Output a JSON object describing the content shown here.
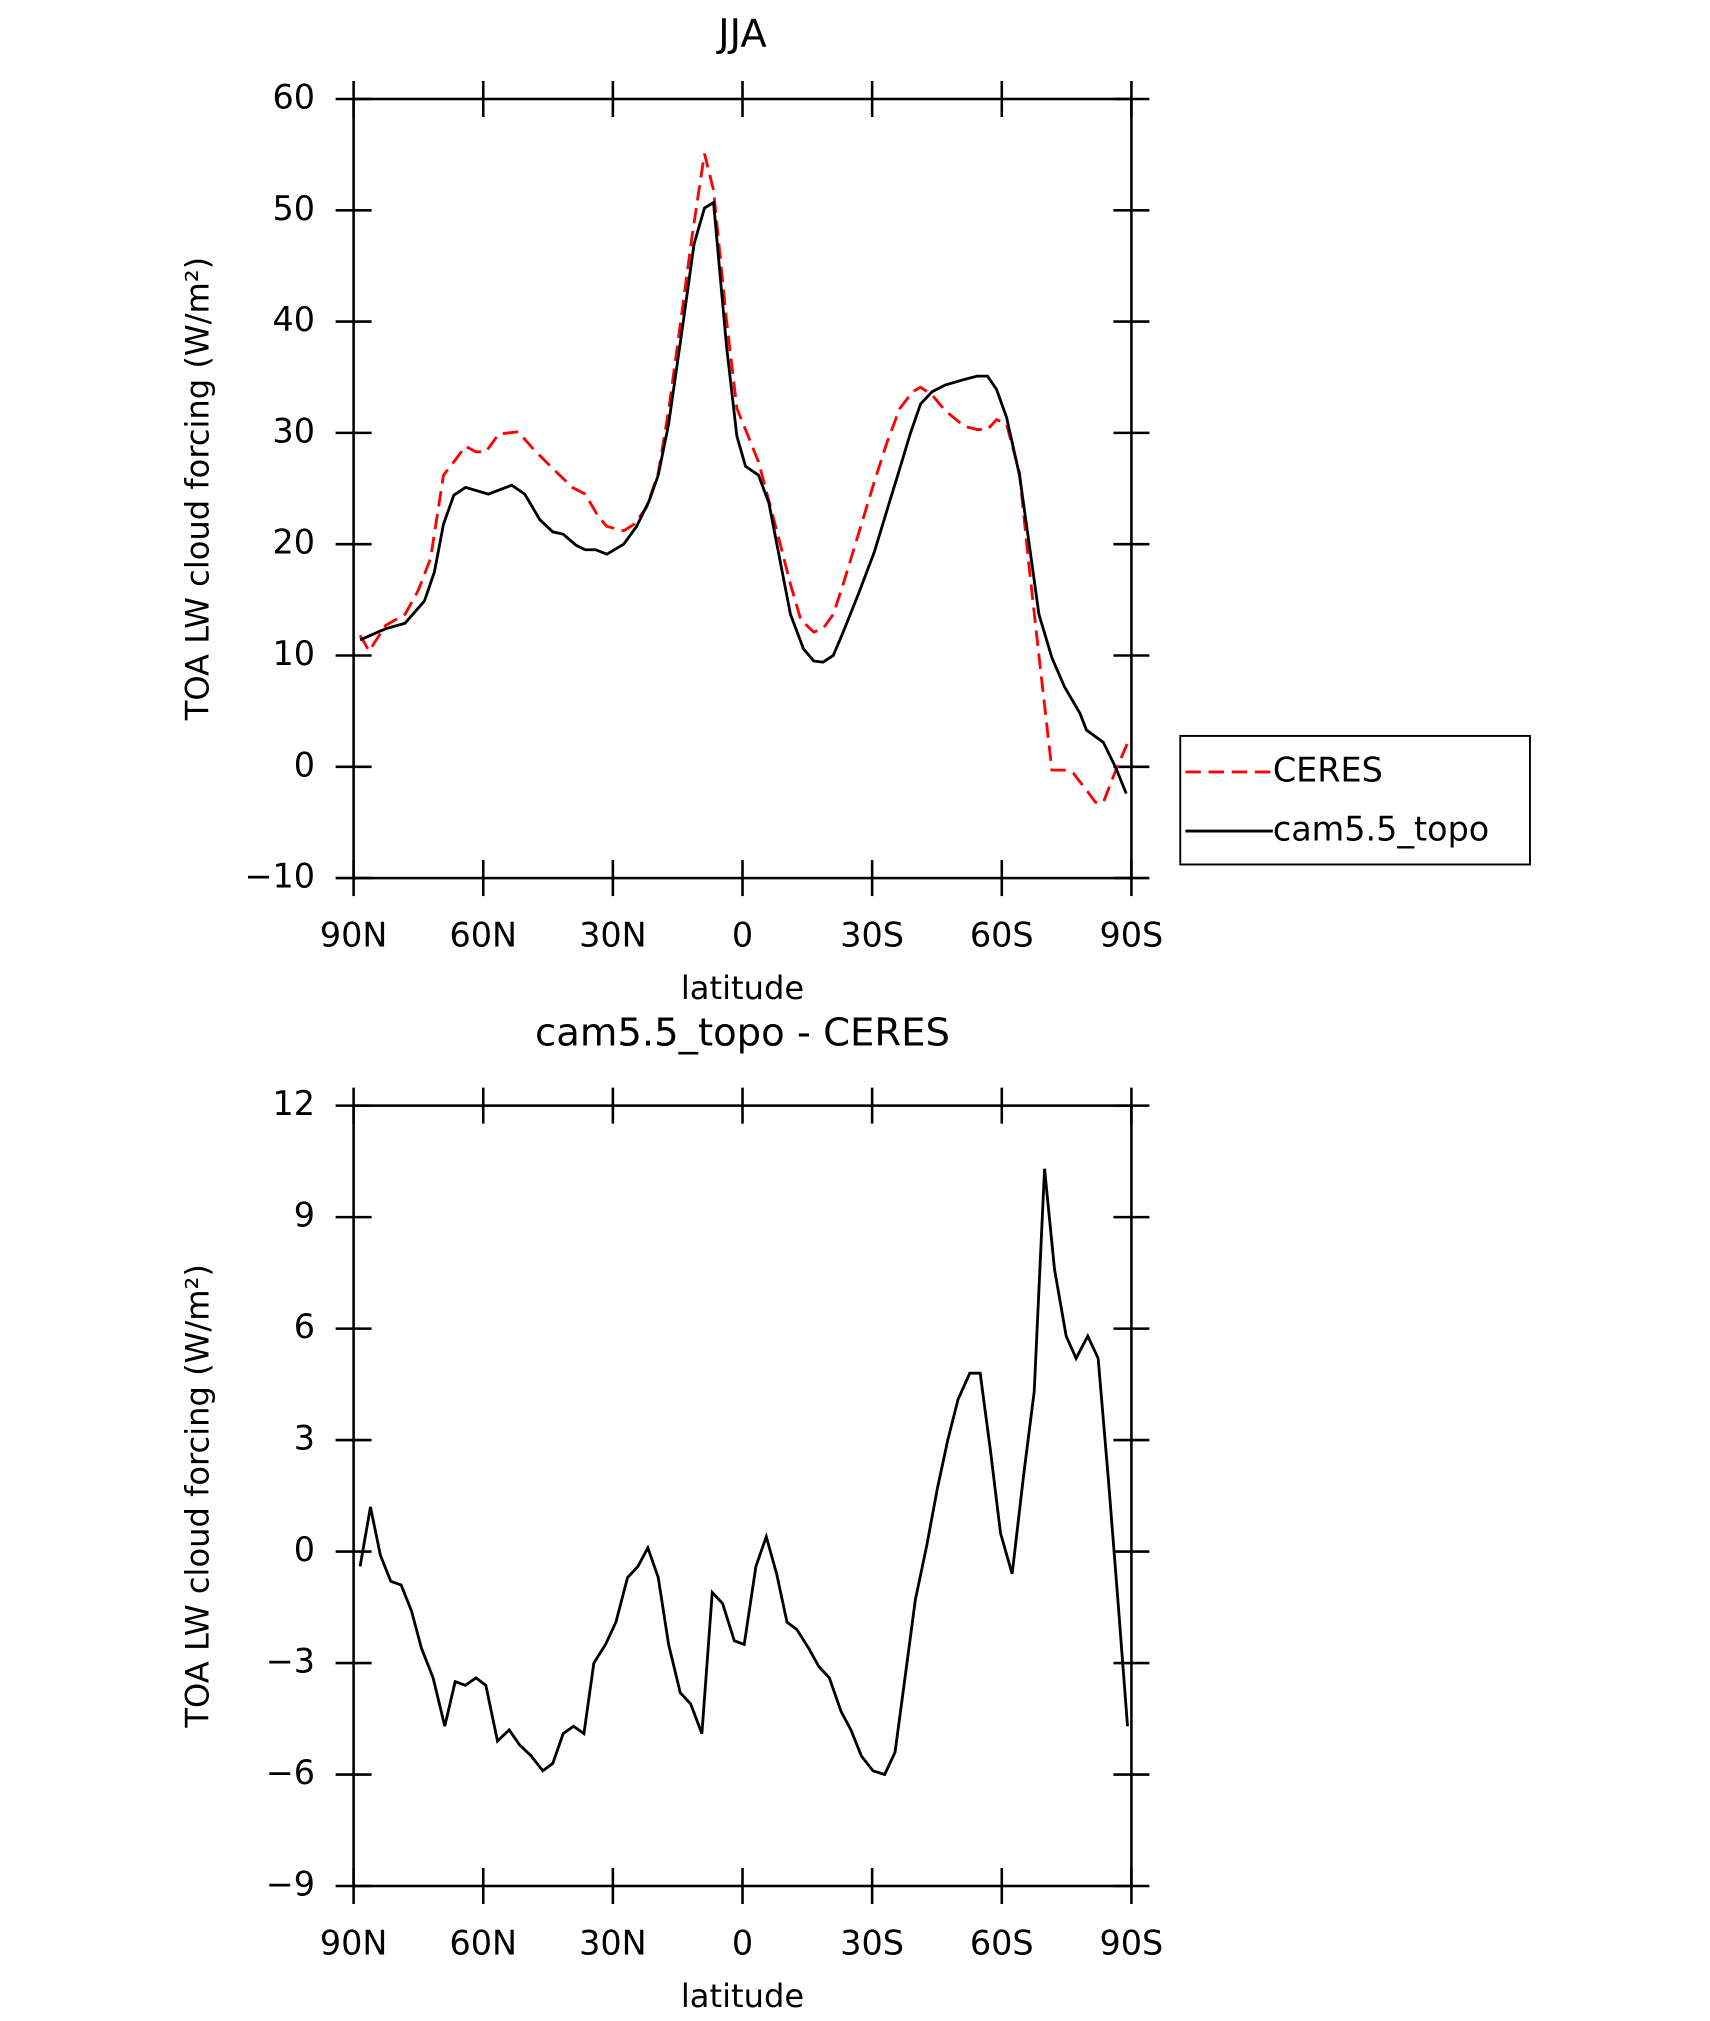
{
  "chart_data": [
    {
      "type": "line",
      "title": "JJA",
      "xlabel": "latitude",
      "ylabel": "TOA LW cloud forcing (W/m²)",
      "xlim": [
        90,
        -90
      ],
      "xticks": [
        {
          "value": 90,
          "label": "90N"
        },
        {
          "value": 60,
          "label": "60N"
        },
        {
          "value": 30,
          "label": "30N"
        },
        0,
        {
          "value": -30,
          "label": "30S"
        },
        {
          "value": -60,
          "label": "60S"
        },
        {
          "value": -90,
          "label": "90S"
        }
      ],
      "ylim": [
        -10,
        60
      ],
      "yticks": [
        {
          "value": -10,
          "label": "−10"
        },
        0,
        10,
        20,
        30,
        40,
        50,
        60
      ],
      "legend": "right",
      "series": [
        {
          "name": "CERES",
          "color": "#ff0000",
          "dashed": true,
          "x": [
            88.5,
            86.4,
            82.6,
            78.1,
            75.1,
            72.2,
            69.2,
            66.8,
            64.1,
            61.7,
            59.4,
            56.4,
            51.9,
            48.3,
            43.9,
            39.4,
            36.4,
            33.4,
            31.4,
            27.5,
            25.1,
            22.2,
            19.5,
            17.1,
            14.1,
            11.7,
            8.8,
            6.7,
            3.7,
            1.3,
            -0.7,
            -3.7,
            -6.1,
            -8.8,
            -11.1,
            -13.5,
            -16.5,
            -18.6,
            -21.0,
            -23.3,
            -26.9,
            -30.5,
            -33.4,
            -36.4,
            -39.4,
            -41.2,
            -43.9,
            -46.9,
            -51.3,
            -54.3,
            -56.7,
            -58.8,
            -61.1,
            -64.1,
            -66.2,
            -68.6,
            -71.6,
            -74.5,
            -76.6,
            -79.6,
            -81.7,
            -83.5,
            -86.4,
            -89.4
          ],
          "values": [
            11.8,
            10.4,
            12.7,
            13.7,
            15.8,
            18.7,
            26.2,
            27.4,
            28.8,
            28.3,
            28.3,
            29.9,
            30.1,
            28.5,
            26.8,
            25.1,
            24.5,
            22.5,
            21.6,
            21.2,
            21.8,
            23.3,
            26.4,
            32,
            40.6,
            47.6,
            55.1,
            51.8,
            40.1,
            32.2,
            30.3,
            27.4,
            23.9,
            19.9,
            16.4,
            13.2,
            12.1,
            12.4,
            13.7,
            16.4,
            21,
            25.6,
            29.1,
            32.2,
            33.7,
            34.1,
            33.4,
            32,
            30.6,
            30.3,
            30.3,
            31.2,
            30.8,
            26.4,
            18.4,
            10,
            -0.3,
            -0.3,
            -0.6,
            -2.1,
            -3.2,
            -3.2,
            -0.3,
            2.4
          ]
        },
        {
          "name": "cam5.5_topo",
          "color": "#000000",
          "dashed": false,
          "x": [
            88.5,
            82.6,
            78.1,
            73.6,
            71.3,
            69.2,
            66.8,
            64.1,
            58.8,
            53.4,
            50.4,
            46.9,
            43.9,
            41.5,
            38.5,
            36.4,
            34.0,
            31.4,
            27.5,
            24.5,
            21.6,
            19.5,
            17.1,
            14.1,
            11.2,
            8.8,
            6.7,
            3.7,
            1.3,
            -0.7,
            -3.7,
            -6.1,
            -8.2,
            -11.1,
            -14.1,
            -16.5,
            -18.6,
            -21.0,
            -23.3,
            -26.9,
            -30.5,
            -33.4,
            -36.4,
            -38.8,
            -41.2,
            -43.9,
            -46.9,
            -51.3,
            -54.3,
            -56.7,
            -58.8,
            -61.1,
            -64.1,
            -66.2,
            -68.6,
            -71.6,
            -74.5,
            -78.1,
            -79.6,
            -83.5,
            -86.4,
            -88.8
          ],
          "values": [
            11.4,
            12.4,
            12.9,
            14.9,
            17.5,
            21.8,
            24.4,
            25.1,
            24.5,
            25.3,
            24.5,
            22.2,
            21.1,
            20.9,
            19.9,
            19.5,
            19.5,
            19.1,
            20,
            21.6,
            23.9,
            26.2,
            30.8,
            38.9,
            47,
            50.2,
            50.7,
            37.8,
            29.7,
            27,
            26.2,
            23.7,
            19.5,
            13.7,
            10.6,
            9.5,
            9.4,
            10,
            12.1,
            15.6,
            19.3,
            23,
            26.8,
            29.9,
            32.6,
            33.7,
            34.3,
            34.8,
            35.1,
            35.1,
            33.9,
            31.4,
            26.2,
            20.4,
            13.7,
            9.8,
            7.2,
            4.8,
            3.3,
            2.2,
            -0.1,
            -2.4
          ]
        }
      ]
    },
    {
      "type": "line",
      "title": "cam5.5_topo - CERES",
      "xlabel": "latitude",
      "ylabel": "TOA LW cloud forcing (W/m²)",
      "xlim": [
        90,
        -90
      ],
      "xticks": [
        {
          "value": 90,
          "label": "90N"
        },
        {
          "value": 60,
          "label": "60N"
        },
        {
          "value": 30,
          "label": "30N"
        },
        0,
        {
          "value": -30,
          "label": "30S"
        },
        {
          "value": -60,
          "label": "60S"
        },
        {
          "value": -90,
          "label": "90S"
        }
      ],
      "ylim": [
        -9,
        12
      ],
      "yticks": [
        {
          "value": -9,
          "label": "−9"
        },
        {
          "value": -6,
          "label": "−6"
        },
        {
          "value": -3,
          "label": "−3"
        },
        0,
        3,
        6,
        9,
        12
      ],
      "color": "#000000",
      "x": [
        88.5,
        86.1,
        83.8,
        81.4,
        79.0,
        76.6,
        74.3,
        71.6,
        68.9,
        66.5,
        64.1,
        61.7,
        59.4,
        56.7,
        54.0,
        51.6,
        48.9,
        46.2,
        43.9,
        41.5,
        39.1,
        36.7,
        34.4,
        31.7,
        29.3,
        26.6,
        24.2,
        21.9,
        19.5,
        17.1,
        14.4,
        12.0,
        9.4,
        7.0,
        4.6,
        1.9,
        -0.4,
        -3.1,
        -5.5,
        -7.9,
        -10.3,
        -12.6,
        -15.3,
        -17.7,
        -20.1,
        -22.8,
        -25.1,
        -27.5,
        -30.2,
        -32.9,
        -35.3,
        -37.6,
        -40.0,
        -42.7,
        -45.1,
        -47.5,
        -49.9,
        -52.6,
        -55.0,
        -57.4,
        -59.7,
        -62.4,
        -65.1,
        -67.5,
        -69.9,
        -72.2,
        -74.9,
        -77.2,
        -79.9,
        -82.3,
        -84.7,
        -87.0,
        -89.1
      ],
      "values": [
        -0.4,
        1.2,
        -0.1,
        -0.8,
        -0.9,
        -1.6,
        -2.6,
        -3.4,
        -4.7,
        -3.5,
        -3.6,
        -3.4,
        -3.6,
        -5.1,
        -4.8,
        -5.2,
        -5.5,
        -5.9,
        -5.7,
        -4.9,
        -4.7,
        -4.9,
        -3.0,
        -2.5,
        -1.9,
        -0.7,
        -0.4,
        0.1,
        -0.7,
        -2.5,
        -3.8,
        -4.1,
        -4.9,
        -1.1,
        -1.4,
        -2.4,
        -2.5,
        -0.4,
        0.4,
        -0.6,
        -1.9,
        -2.1,
        -2.6,
        -3.1,
        -3.4,
        -4.3,
        -4.8,
        -5.5,
        -5.9,
        -6.0,
        -5.4,
        -3.4,
        -1.3,
        0.2,
        1.7,
        3.0,
        4.1,
        4.8,
        4.8,
        2.7,
        0.5,
        -0.6,
        2.1,
        4.3,
        10.3,
        7.6,
        5.8,
        5.2,
        5.8,
        5.2,
        1.9,
        -1.5,
        -4.7
      ]
    }
  ]
}
